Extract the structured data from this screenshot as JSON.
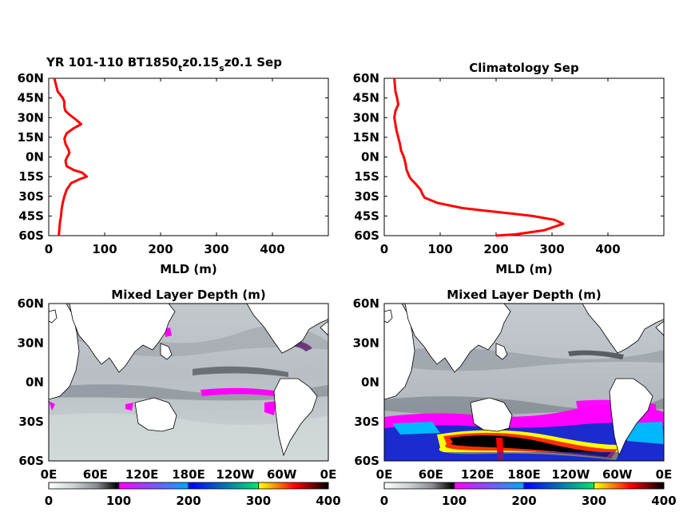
{
  "colors": {
    "profile_line": "#ff0000",
    "axis": "#000000",
    "land": "#ffffff",
    "colorbar_stops": [
      "#ffffff",
      "#c8d2d4",
      "#8a8f96",
      "#000000",
      "#ff00ff",
      "#00a8ff",
      "#0000ff",
      "#00e070",
      "#ffff00",
      "#ff0000",
      "#000000"
    ]
  },
  "chart_data": [
    {
      "type": "line",
      "title_parts": [
        "YR 101-110 BT1850",
        "t",
        "z0.15",
        "s",
        "z0.1 Sep"
      ],
      "xlabel": "MLD (m)",
      "ylabel": "",
      "xlim": [
        0,
        500
      ],
      "ylim": [
        -60,
        60
      ],
      "xticks": [
        "0",
        "100",
        "200",
        "300",
        "400"
      ],
      "yticks": [
        "60N",
        "45N",
        "30N",
        "15N",
        "0N",
        "15S",
        "30S",
        "45S",
        "60S"
      ],
      "series": [
        {
          "x": [
            18,
            20,
            22,
            23,
            25,
            28,
            32,
            40,
            55,
            68,
            60,
            45,
            32,
            30,
            33,
            37,
            35,
            30,
            28,
            32,
            45,
            58,
            50,
            38,
            30,
            28,
            28,
            25,
            16,
            13,
            10
          ],
          "y": [
            -60,
            -50,
            -45,
            -40,
            -35,
            -30,
            -25,
            -20,
            -17,
            -15,
            -12,
            -10,
            -7,
            -3,
            0,
            3,
            6,
            10,
            14,
            18,
            22,
            25,
            28,
            32,
            35,
            38,
            42,
            45,
            50,
            55,
            60
          ]
        }
      ]
    },
    {
      "type": "line",
      "title": "Climatology Sep",
      "xlabel": "MLD (m)",
      "ylabel": "",
      "xlim": [
        0,
        500
      ],
      "ylim": [
        -60,
        60
      ],
      "xticks": [
        "0",
        "100",
        "200",
        "300",
        "400"
      ],
      "yticks": [
        "60N",
        "45N",
        "30N",
        "15N",
        "0N",
        "15S",
        "30S",
        "45S",
        "60S"
      ],
      "series": [
        {
          "x": [
            200,
            235,
            285,
            320,
            305,
            265,
            225,
            180,
            140,
            95,
            72,
            68,
            65,
            55,
            48,
            45,
            40,
            38,
            35,
            30,
            28,
            25,
            22,
            20,
            18,
            20,
            25,
            23,
            20,
            18
          ],
          "y": [
            -60,
            -59,
            -56,
            -51,
            -48,
            -45,
            -43,
            -41,
            -39,
            -35,
            -31,
            -28,
            -25,
            -20,
            -17,
            -15,
            -10,
            -5,
            0,
            5,
            10,
            15,
            20,
            25,
            30,
            35,
            40,
            45,
            50,
            60
          ]
        }
      ]
    },
    {
      "type": "heatmap",
      "title": "Mixed Layer Depth (m)",
      "xticks": [
        "0E",
        "60E",
        "120E",
        "180E",
        "120W",
        "60W",
        "0E"
      ],
      "yticks": [
        "60N",
        "30N",
        "0N",
        "30S",
        "60S"
      ],
      "colorbar_ticks": [
        "0",
        "100",
        "200",
        "300",
        "400"
      ],
      "colorbar_range": [
        0,
        400
      ]
    },
    {
      "type": "heatmap",
      "title": "Mixed Layer Depth (m)",
      "xticks": [
        "0E",
        "60E",
        "120E",
        "180E",
        "120W",
        "60W",
        "0E"
      ],
      "yticks": [
        "60N",
        "30N",
        "0N",
        "30S",
        "60S"
      ],
      "colorbar_ticks": [
        "0",
        "100",
        "200",
        "300",
        "400"
      ],
      "colorbar_range": [
        0,
        400
      ]
    }
  ]
}
